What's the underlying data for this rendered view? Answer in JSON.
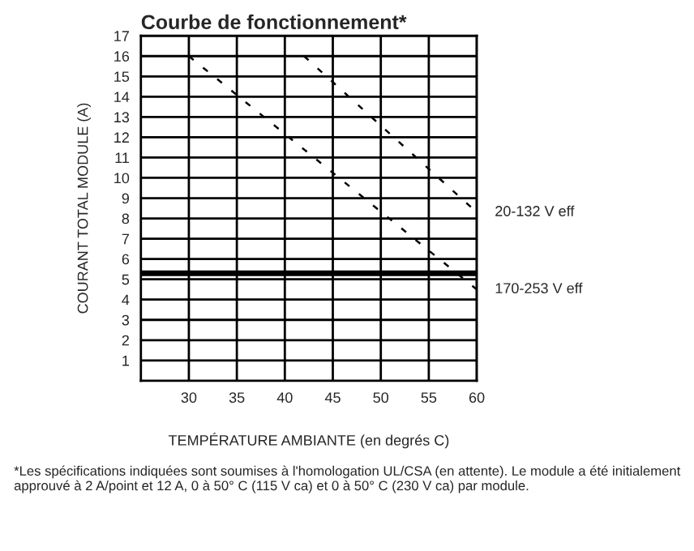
{
  "chart_data": {
    "type": "line",
    "title": "Courbe de fonctionnement*",
    "xlabel": "TEMPÉRATURE AMBIANTE (en degrés C)",
    "ylabel": "COURANT TOTAL MODULE (A)",
    "series": [
      {
        "name": "20-132 V eff",
        "color": "#000000",
        "x": [
          42,
          60
        ],
        "values": [
          16,
          8.3
        ]
      },
      {
        "name": "170-253 V eff",
        "color": "#000000",
        "x": [
          30,
          60
        ],
        "values": [
          16,
          4.5
        ]
      }
    ],
    "ref_lines": [
      {
        "axis": "y",
        "value": 5.3,
        "label": null,
        "color": "#000000"
      }
    ],
    "xlim": [
      25,
      60
    ],
    "xticks": [
      30,
      35,
      40,
      45,
      50,
      55,
      60
    ],
    "ylim": [
      0,
      17
    ],
    "yticks": [
      1,
      2,
      3,
      4,
      5,
      6,
      7,
      8,
      9,
      10,
      11,
      12,
      13,
      14,
      15,
      16,
      17
    ],
    "grid": true,
    "legend": false,
    "line_style": "dashed",
    "marker": "none",
    "annotations": [
      "*Les spécifications indiquées sont soumises à l'homologation UL/CSA (en attente). Le module a été initialement approuvé à 2 A/point et 12 A, 0 à 50° C (115 V ca) et 0 à 50° C (230 V ca) par module."
    ]
  }
}
